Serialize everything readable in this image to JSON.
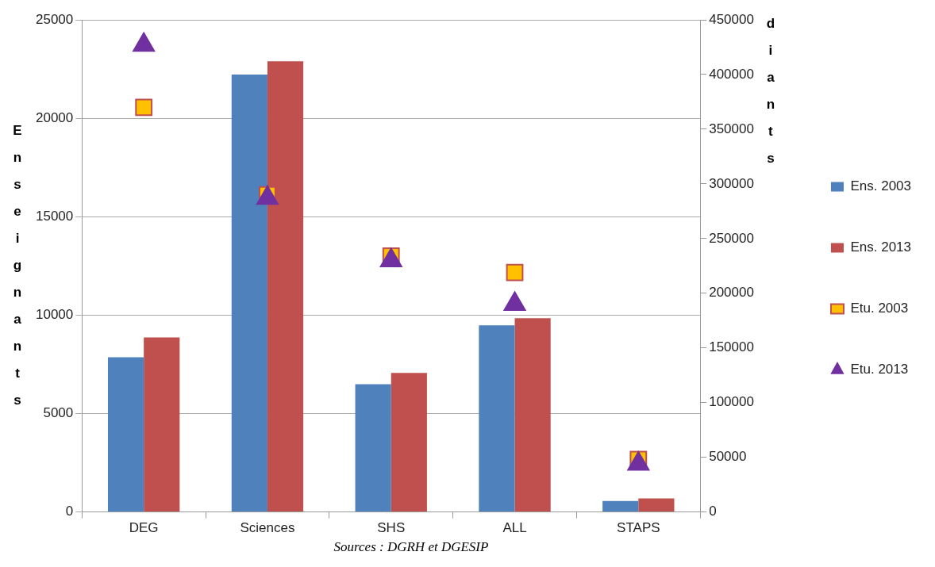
{
  "chart_data": {
    "type": "bar",
    "categories": [
      "DEG",
      "Sciences",
      "SHS",
      "ALL",
      "STAPS"
    ],
    "ylabel": "Enseignants",
    "y2label": "diants",
    "ylim": [
      0,
      25000
    ],
    "yticks": [
      0,
      5000,
      10000,
      15000,
      20000,
      25000
    ],
    "y2lim": [
      0,
      450000
    ],
    "y2ticks": [
      0,
      50000,
      100000,
      150000,
      200000,
      250000,
      300000,
      350000,
      400000,
      450000
    ],
    "grid": "y",
    "legend": "right",
    "annotations": [
      "Sources : DGRH et DGESIP"
    ],
    "series": [
      {
        "name": "Ens. 2003",
        "color": "#4f81bd",
        "values": [
          7860,
          22220,
          6490,
          9480,
          560
        ]
      },
      {
        "name": "Ens. 2013",
        "color": "#c0504d",
        "values": [
          8870,
          22900,
          7060,
          9840,
          690
        ]
      },
      {
        "name": "Etu. 2003",
        "type": "scatter",
        "axis": "y2",
        "marker": "square",
        "color": "#ffc000",
        "values": [
          370000,
          290000,
          234000,
          219000,
          48000
        ]
      },
      {
        "name": "Etu. 2013",
        "type": "scatter",
        "axis": "y2",
        "marker": "triangle",
        "color": "#7030a0",
        "values": [
          427000,
          287000,
          230000,
          190000,
          44000
        ]
      }
    ]
  }
}
